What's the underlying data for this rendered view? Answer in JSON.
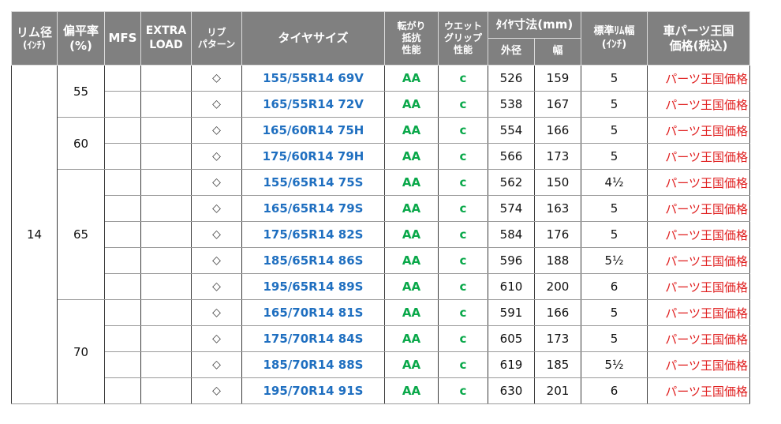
{
  "headers": {
    "rim_diameter": "リム径",
    "rim_diameter_unit": "(ｲﾝﾁ)",
    "aspect_ratio": "偏平率",
    "aspect_ratio_unit": "(%)",
    "mfs": "MFS",
    "extra_load_1": "EXTRA",
    "extra_load_2": "LOAD",
    "rib_pattern_1": "リブ",
    "rib_pattern_2": "パターン",
    "tire_size": "タイヤサイズ",
    "rolling_1": "転がり",
    "rolling_2": "抵抗",
    "rolling_3": "性能",
    "wet_1": "ウエット",
    "wet_2": "グリップ",
    "wet_3": "性能",
    "dimensions": "ﾀｲﾔ寸法(mm)",
    "outer_diameter": "外径",
    "width": "幅",
    "std_rim_width_1": "標準ﾘﾑ幅",
    "std_rim_width_2": "(ｲﾝﾁ)",
    "price_1": "車パーツ王国",
    "price_2": "価格(税込)"
  },
  "rim_value": "14",
  "aspect_groups": [
    {
      "aspect": "55",
      "rows": [
        {
          "pattern": "◇",
          "size": "155/55R14 69V",
          "rolling": "AA",
          "wet": "c",
          "outer": "526",
          "width": "159",
          "rim_width": "5",
          "price": "パーツ王国価格"
        },
        {
          "pattern": "◇",
          "size": "165/55R14 72V",
          "rolling": "AA",
          "wet": "c",
          "outer": "538",
          "width": "167",
          "rim_width": "5",
          "price": "パーツ王国価格"
        }
      ]
    },
    {
      "aspect": "60",
      "rows": [
        {
          "pattern": "◇",
          "size": "165/60R14 75H",
          "rolling": "AA",
          "wet": "c",
          "outer": "554",
          "width": "166",
          "rim_width": "5",
          "price": "パーツ王国価格"
        },
        {
          "pattern": "◇",
          "size": "175/60R14 79H",
          "rolling": "AA",
          "wet": "c",
          "outer": "566",
          "width": "173",
          "rim_width": "5",
          "price": "パーツ王国価格"
        }
      ]
    },
    {
      "aspect": "65",
      "rows": [
        {
          "pattern": "◇",
          "size": "155/65R14 75S",
          "rolling": "AA",
          "wet": "c",
          "outer": "562",
          "width": "150",
          "rim_width": "4½",
          "price": "パーツ王国価格"
        },
        {
          "pattern": "◇",
          "size": "165/65R14 79S",
          "rolling": "AA",
          "wet": "c",
          "outer": "574",
          "width": "163",
          "rim_width": "5",
          "price": "パーツ王国価格"
        },
        {
          "pattern": "◇",
          "size": "175/65R14 82S",
          "rolling": "AA",
          "wet": "c",
          "outer": "584",
          "width": "176",
          "rim_width": "5",
          "price": "パーツ王国価格"
        },
        {
          "pattern": "◇",
          "size": "185/65R14 86S",
          "rolling": "AA",
          "wet": "c",
          "outer": "596",
          "width": "188",
          "rim_width": "5½",
          "price": "パーツ王国価格"
        },
        {
          "pattern": "◇",
          "size": "195/65R14 89S",
          "rolling": "AA",
          "wet": "c",
          "outer": "610",
          "width": "200",
          "rim_width": "6",
          "price": "パーツ王国価格"
        }
      ]
    },
    {
      "aspect": "70",
      "rows": [
        {
          "pattern": "◇",
          "size": "165/70R14 81S",
          "rolling": "AA",
          "wet": "c",
          "outer": "591",
          "width": "166",
          "rim_width": "5",
          "price": "パーツ王国価格"
        },
        {
          "pattern": "◇",
          "size": "175/70R14 84S",
          "rolling": "AA",
          "wet": "c",
          "outer": "605",
          "width": "173",
          "rim_width": "5",
          "price": "パーツ王国価格"
        },
        {
          "pattern": "◇",
          "size": "185/70R14 88S",
          "rolling": "AA",
          "wet": "c",
          "outer": "619",
          "width": "185",
          "rim_width": "5½",
          "price": "パーツ王国価格"
        },
        {
          "pattern": "◇",
          "size": "195/70R14 91S",
          "rolling": "AA",
          "wet": "c",
          "outer": "630",
          "width": "201",
          "rim_width": "6",
          "price": "パーツ王国価格"
        }
      ]
    }
  ],
  "colors": {
    "header_bg": "#808080",
    "size_text": "#1f6fc0",
    "grade_text": "#0aa84a",
    "price_text": "#e02020"
  }
}
